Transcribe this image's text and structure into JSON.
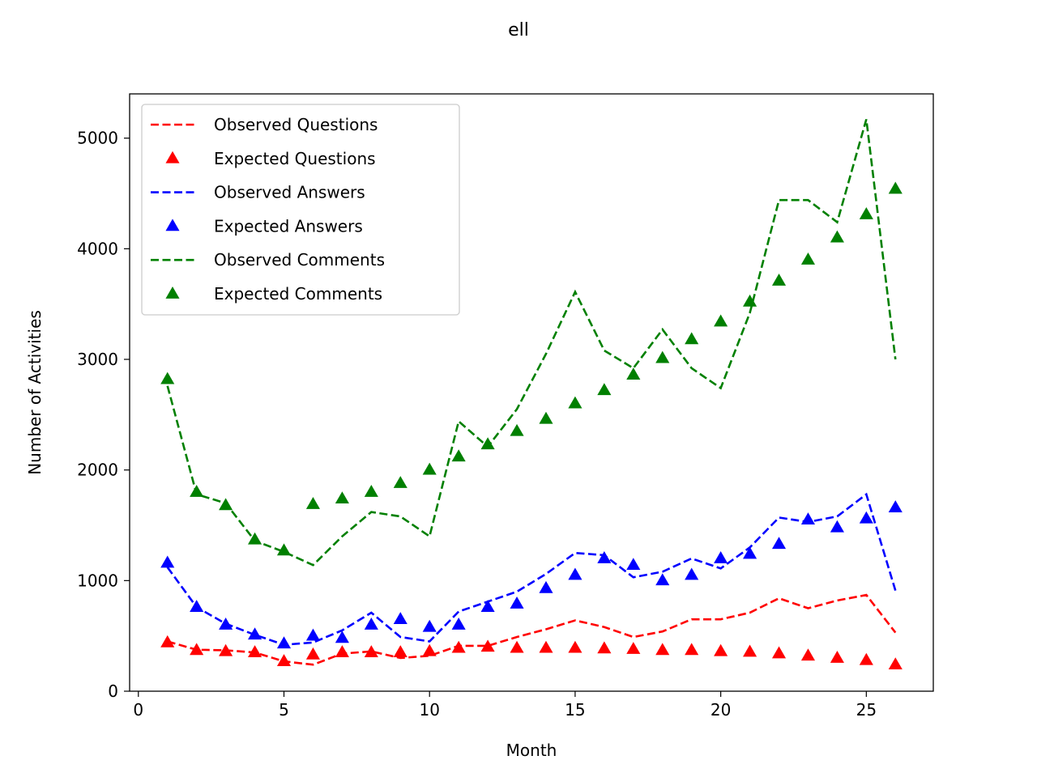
{
  "chart_data": {
    "type": "line",
    "title": "ell",
    "xlabel": "Month",
    "ylabel": "Number of Activities",
    "xlim": [
      -0.3,
      27.3
    ],
    "ylim": [
      0,
      5400
    ],
    "xticks": [
      0,
      5,
      10,
      15,
      20,
      25
    ],
    "yticks": [
      0,
      1000,
      2000,
      3000,
      4000,
      5000
    ],
    "grid": false,
    "legend_position": "top-left",
    "x": [
      1,
      2,
      3,
      4,
      5,
      6,
      7,
      8,
      9,
      10,
      11,
      12,
      13,
      14,
      15,
      16,
      17,
      18,
      19,
      20,
      21,
      22,
      23,
      24,
      25,
      26
    ],
    "series": [
      {
        "name": "Observed Questions",
        "style": "dashed",
        "color": "#ff0000",
        "values": [
          450,
          375,
          370,
          350,
          270,
          240,
          340,
          360,
          300,
          320,
          410,
          410,
          490,
          560,
          640,
          580,
          490,
          540,
          650,
          650,
          710,
          840,
          750,
          820,
          870,
          530
        ]
      },
      {
        "name": "Expected Questions",
        "style": "triangle",
        "color": "#ff0000",
        "values": [
          440,
          370,
          360,
          350,
          270,
          330,
          350,
          350,
          350,
          360,
          390,
          400,
          390,
          390,
          390,
          385,
          380,
          370,
          370,
          360,
          355,
          340,
          320,
          300,
          280,
          240
        ]
      },
      {
        "name": "Observed Answers",
        "style": "dashed",
        "color": "#0000ff",
        "values": [
          1120,
          760,
          610,
          510,
          420,
          440,
          550,
          710,
          490,
          450,
          720,
          810,
          900,
          1060,
          1250,
          1230,
          1030,
          1080,
          1200,
          1110,
          1300,
          1570,
          1530,
          1580,
          1780,
          910
        ]
      },
      {
        "name": "Expected Answers",
        "style": "triangle",
        "color": "#0000ff",
        "values": [
          1160,
          760,
          600,
          510,
          430,
          500,
          480,
          600,
          650,
          580,
          600,
          760,
          790,
          930,
          1050,
          1200,
          1140,
          1000,
          1050,
          1200,
          1240,
          1330,
          1550,
          1480,
          1560,
          1660
        ]
      },
      {
        "name": "Observed Comments",
        "style": "dashed",
        "color": "#008000",
        "values": [
          2760,
          1780,
          1700,
          1360,
          1260,
          1140,
          1400,
          1620,
          1580,
          1400,
          2440,
          2210,
          2550,
          3050,
          3610,
          3080,
          2920,
          3270,
          2920,
          2740,
          3420,
          4440,
          4440,
          4240,
          5170,
          3000
        ]
      },
      {
        "name": "Expected Comments",
        "style": "triangle",
        "color": "#008000",
        "values": [
          2820,
          1800,
          1680,
          1370,
          1270,
          1690,
          1740,
          1800,
          1880,
          2000,
          2120,
          2230,
          2350,
          2460,
          2600,
          2720,
          2860,
          3010,
          3180,
          3340,
          3520,
          3710,
          3900,
          4100,
          4310,
          4540
        ]
      }
    ]
  }
}
